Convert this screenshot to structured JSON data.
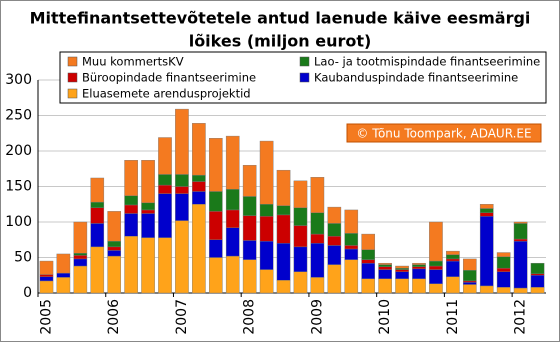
{
  "chart_data": {
    "type": "stacked_bar",
    "title": "Mittefinantsettevõtetele antud laenude käive eesmärgi",
    "subtitle": "lõikes (miljon eurot)",
    "annotation": "© Tõnu Toompark, ADAUR.EE",
    "categories": [
      "2005",
      null,
      null,
      null,
      "2006",
      null,
      null,
      null,
      "2007",
      null,
      null,
      null,
      "2008",
      null,
      null,
      null,
      "2009",
      null,
      null,
      null,
      "2010",
      null,
      null,
      null,
      "2011",
      null,
      null,
      null,
      "2012",
      null
    ],
    "series": [
      {
        "name": "Eluasemete arendusprojektid",
        "color": "#ffa31a",
        "values": [
          17,
          22,
          38,
          65,
          52,
          80,
          78,
          78,
          102,
          125,
          50,
          52,
          47,
          33,
          18,
          30,
          22,
          40,
          47,
          20,
          20,
          20,
          20,
          13,
          23,
          12,
          10,
          8,
          7,
          8
        ]
      },
      {
        "name": "Kaubanduspindade finantseerimine",
        "color": "#0000cc",
        "values": [
          6,
          6,
          10,
          33,
          8,
          32,
          34,
          62,
          38,
          18,
          25,
          40,
          27,
          40,
          52,
          35,
          48,
          27,
          15,
          22,
          13,
          10,
          14,
          20,
          22,
          3,
          98,
          22,
          66,
          17
        ]
      },
      {
        "name": "Büroopindade finantseerimine",
        "color": "#cc0000",
        "values": [
          3,
          0,
          5,
          22,
          5,
          12,
          5,
          12,
          10,
          14,
          40,
          25,
          35,
          35,
          40,
          30,
          13,
          13,
          5,
          5,
          4,
          3,
          3,
          5,
          3,
          2,
          5,
          5,
          3,
          2
        ]
      },
      {
        "name": "Lao- ja tootmispindade finantseerimine",
        "color": "#1a7a1a",
        "values": [
          0,
          0,
          3,
          8,
          8,
          13,
          10,
          15,
          17,
          9,
          28,
          29,
          27,
          17,
          13,
          25,
          30,
          18,
          17,
          14,
          3,
          2,
          3,
          7,
          6,
          15,
          6,
          16,
          22,
          15
        ]
      },
      {
        "name": "Muu kommertsKV",
        "color": "#f47a20",
        "values": [
          19,
          27,
          44,
          34,
          42,
          50,
          60,
          52,
          92,
          73,
          75,
          75,
          44,
          89,
          50,
          38,
          50,
          23,
          33,
          22,
          2,
          3,
          2,
          55,
          5,
          16,
          6,
          6,
          2,
          0
        ]
      }
    ],
    "ylim": [
      0,
      300
    ],
    "yticks": [
      0,
      50,
      100,
      150,
      200,
      250,
      300
    ],
    "grid": true
  }
}
